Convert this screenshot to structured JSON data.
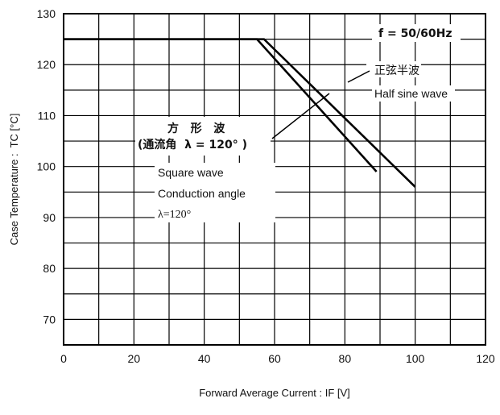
{
  "chart_data": {
    "type": "line",
    "title": "",
    "xlabel": "Forward Average Current : IF [V]",
    "ylabel": "Case Temperature :  TC [°C]",
    "xlim": [
      0,
      120
    ],
    "ylim": [
      65,
      130
    ],
    "x_ticks": [
      0,
      20,
      40,
      60,
      80,
      100,
      120
    ],
    "y_ticks": [
      70,
      80,
      90,
      100,
      110,
      120,
      130
    ],
    "grid": true,
    "series": [
      {
        "name": "Square wave",
        "points": [
          [
            0,
            125
          ],
          [
            55,
            125
          ],
          [
            89,
            99
          ]
        ]
      },
      {
        "name": "Half sine wave",
        "points": [
          [
            0,
            125
          ],
          [
            57,
            125
          ],
          [
            100,
            96
          ]
        ]
      }
    ],
    "annotations": {
      "frequency": "f = 50/60Hz",
      "half_sine_jp": "正弦半波",
      "half_sine_en": "Half sine wave",
      "square_jp_line1": "方   形   波",
      "square_jp_line2": "(通流角  λ = 120° )",
      "square_en_line1": "Square wave",
      "square_en_line2": "Conduction angle",
      "square_en_line3": "λ=120°"
    }
  }
}
